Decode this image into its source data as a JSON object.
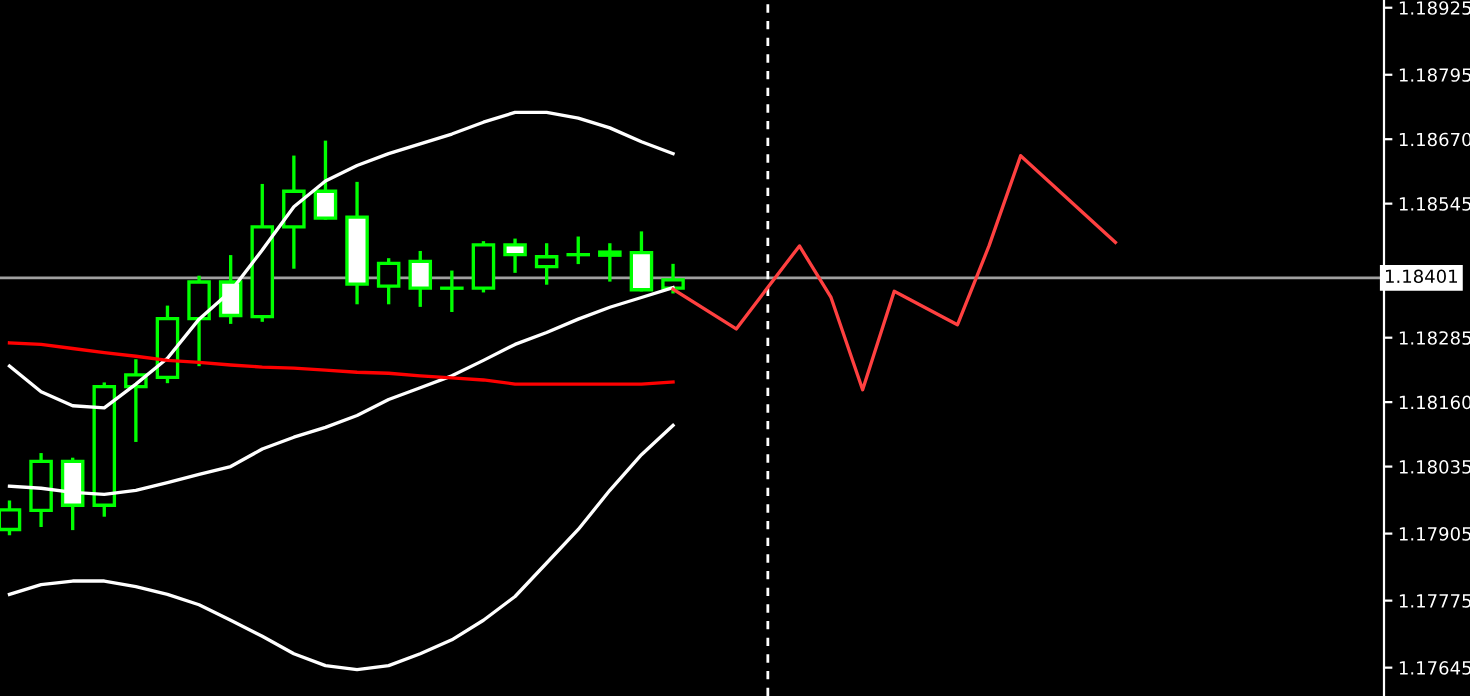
{
  "chart_data": {
    "type": "candlestick",
    "categories": [
      null,
      null,
      null,
      null,
      null,
      null,
      null,
      null,
      null,
      null,
      null,
      null,
      null,
      null,
      null,
      null,
      null,
      null,
      null,
      null,
      null,
      null,
      null,
      null,
      null,
      null,
      null,
      null,
      null,
      null,
      null,
      null,
      null,
      null,
      null,
      null,
      null,
      null,
      null,
      null,
      null,
      null,
      null,
      null
    ],
    "color": "#00ff00",
    "ohlc": [
      [
        1.17913,
        1.17966,
        1.17905,
        1.17951
      ],
      [
        1.1795,
        1.18058,
        1.17921,
        1.18045
      ],
      [
        1.18045,
        1.18049,
        1.17915,
        1.1796
      ],
      [
        1.1796,
        1.18195,
        1.17941,
        1.1819
      ],
      [
        1.1819,
        1.1824,
        1.18086,
        1.18213
      ],
      [
        1.18208,
        1.18344,
        1.182,
        1.18322
      ],
      [
        1.18322,
        1.18402,
        1.18233,
        1.18393
      ],
      [
        1.18393,
        1.18442,
        1.18315,
        1.18328
      ],
      [
        1.18326,
        1.1858,
        1.18319,
        1.185
      ],
      [
        1.185,
        1.18635,
        1.18422,
        1.18569
      ],
      [
        1.18569,
        1.18664,
        1.18517,
        1.18517
      ],
      [
        1.18519,
        1.18584,
        1.18353,
        1.18389
      ],
      [
        1.18385,
        1.18436,
        1.18353,
        1.18429
      ],
      [
        1.18433,
        1.1845,
        1.18348,
        1.18381
      ],
      [
        1.18381,
        1.18412,
        1.18338,
        1.18381
      ],
      [
        1.18381,
        1.18469,
        1.18376,
        1.18465
      ],
      [
        1.18465,
        1.18474,
        1.18414,
        1.18446
      ],
      [
        1.18423,
        1.18465,
        1.18391,
        1.18442
      ],
      [
        1.18446,
        1.18478,
        1.18431,
        1.18446
      ],
      [
        1.18445,
        1.18465,
        1.18397,
        1.18451
      ],
      [
        1.1845,
        1.18488,
        1.18378,
        1.18378
      ],
      [
        1.18381,
        1.18425,
        1.18374,
        1.18397
      ],
      null,
      null,
      null,
      null,
      null,
      null,
      null,
      null,
      null,
      null,
      null,
      null,
      null,
      null,
      null,
      null,
      null,
      null,
      null,
      null,
      null,
      null
    ],
    "series": [
      {
        "type": "line",
        "color": "#ffffff",
        "values": [
          1.1823,
          1.1818,
          1.18153,
          1.18149,
          1.18195,
          1.18245,
          1.18321,
          1.18375,
          1.18455,
          1.18539,
          1.18589,
          1.18619,
          1.18642,
          1.18661,
          1.1868,
          1.18703,
          1.18722,
          1.18722,
          1.18711,
          1.18692,
          1.18665,
          1.18642,
          null,
          null,
          null,
          null,
          null,
          null,
          null,
          null,
          null,
          null,
          null,
          null,
          null,
          null,
          null,
          null,
          null,
          null,
          null,
          null,
          null,
          null
        ]
      },
      {
        "type": "line",
        "color": "#ffffff",
        "values": [
          1.17997,
          1.17993,
          1.17985,
          1.17981,
          1.17989,
          1.18004,
          1.1802,
          1.18035,
          1.18069,
          1.18092,
          1.18111,
          1.18134,
          1.18165,
          1.18188,
          1.18211,
          1.18241,
          1.18272,
          1.18295,
          1.18321,
          1.18344,
          1.18363,
          1.18382,
          null,
          null,
          null,
          null,
          null,
          null,
          null,
          null,
          null,
          null,
          null,
          null,
          null,
          null,
          null,
          null,
          null,
          null,
          null,
          null,
          null,
          null
        ]
      },
      {
        "type": "line",
        "color": "#ffffff",
        "values": [
          1.17787,
          1.17806,
          1.17813,
          1.17813,
          1.17802,
          1.17787,
          1.17767,
          1.17737,
          1.17706,
          1.17672,
          1.17649,
          1.17641,
          1.17649,
          1.17672,
          1.17699,
          1.17737,
          1.17783,
          1.17848,
          1.17913,
          1.17989,
          1.18058,
          1.18115,
          null,
          null,
          null,
          null,
          null,
          null,
          null,
          null,
          null,
          null,
          null,
          null,
          null,
          null,
          null,
          null,
          null,
          null,
          null,
          null,
          null,
          null
        ]
      },
      {
        "type": "line",
        "color": "#ff0000",
        "values": [
          1.18275,
          1.18272,
          1.18264,
          1.18256,
          1.18249,
          1.18241,
          1.18237,
          1.18232,
          1.18228,
          1.18226,
          1.18222,
          1.18218,
          1.18216,
          1.18211,
          1.18207,
          1.18203,
          1.18195,
          1.18195,
          1.18195,
          1.18195,
          1.18195,
          1.18199,
          null,
          null,
          null,
          null,
          null,
          null,
          null,
          null,
          null,
          null,
          null,
          null,
          null,
          null,
          null,
          null,
          null,
          null,
          null,
          null,
          null,
          null
        ]
      },
      {
        "type": "line",
        "color": "#ff4040",
        "values": [
          null,
          null,
          null,
          null,
          null,
          null,
          null,
          null,
          null,
          null,
          null,
          null,
          null,
          null,
          null,
          null,
          null,
          null,
          null,
          null,
          null,
          1.18379,
          null,
          1.18302,
          null,
          1.18463,
          1.18363,
          1.18184,
          1.18375,
          null,
          1.1831,
          1.18463,
          1.18638,
          null,
          null,
          1.1847,
          null,
          null,
          null,
          null,
          null,
          null,
          null,
          null
        ]
      }
    ],
    "ylim": [
      1.1759,
      1.1894
    ],
    "yticks": [
      1.18925,
      1.18795,
      {
        "value": 1.1867,
        "label": "1.18670"
      },
      1.18545,
      1.18285,
      {
        "value": 1.1816,
        "label": "1.18160"
      },
      1.18035,
      1.17905,
      1.17775,
      1.17645
    ],
    "ref_lines": [
      {
        "axis": "y",
        "value": 1.18401,
        "label": "1.18401",
        "color": "#a0a0a0"
      }
    ],
    "tick_labels": "y",
    "grid": false,
    "legend": false
  }
}
